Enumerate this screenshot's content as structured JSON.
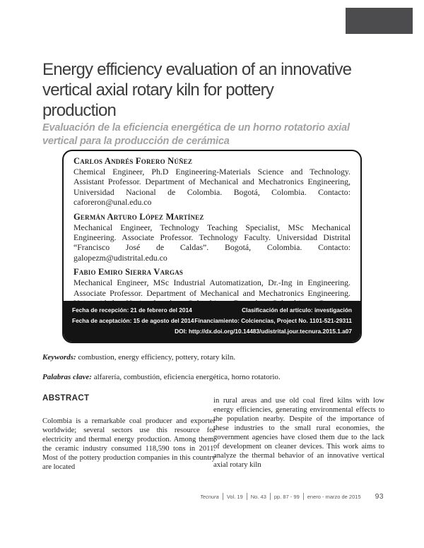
{
  "colors": {
    "page_background": "#ffffff",
    "corner_mark": "#4c4c4f",
    "title_text": "#3c3c3e",
    "subtitle_text": "#a2a2a4",
    "meta_band_background": "#141414",
    "meta_band_text": "#ffffff",
    "footer_text": "#58585a"
  },
  "header": {
    "title_lines": [
      "Energy efficiency evaluation of an innovative",
      "vertical axial rotary kiln for pottery",
      "production"
    ],
    "subtitle_lines": [
      "Evaluación de la eficiencia energética de un horno rotatorio axial",
      "vertical para la producción de cerámica"
    ]
  },
  "author_box": {
    "authors": [
      {
        "name": "Carlos Andrés Forero Núñez",
        "bio": "Chemical Engineer, Ph.D Engineering-Materials Science and Technology. Assistant Professor. Department of Mechanical and Mechatronics Engineering, Universidad Nacional de Colombia. Bogotá, Colombia. Contacto: caforeron@unal.edu.co"
      },
      {
        "name": "Germán Arturo López Martínez",
        "bio": "Mechanical Engineer, Technology Teaching Specialist, MSc Mechanical Engineering. Associate Professor. Technology Faculty. Universidad Distrital “Francisco José de Caldas”. Bogotá, Colombia. Contacto: galopezm@udistrital.edu.co"
      },
      {
        "name": "Fabio Emiro Sierra Vargas",
        "bio": "Mechanical Engineer, MSc Industrial Automatization, Dr.-Ing in Engineering. Associate Professor. Department of Mechanical and Mechatronics Engineering. Universidad Nacional de Colombia. Bogotá, Colombia. Contacto: fesierrav@unal.edu.co"
      }
    ],
    "meta": {
      "row1_left": "Fecha de recepción: 21 de febrero del 2014",
      "row1_right": "Clasificación del artículo: investigación",
      "row2_left": "Fecha de aceptación: 15 de agosto del 2014",
      "row2_right": "Financiamiento: Colciencias, Project No. 1101-521-29311",
      "row3_right": "DOI: http://dx.doi.org/10.14483/udistrital.jour.tecnura.2015.1.a07"
    }
  },
  "keywords": {
    "label": "Keywords:",
    "text": " combustion, energy efficiency, pottery, rotary kiln."
  },
  "palabras": {
    "label": "Palabras clave:",
    "text": " alfarería, combustión, eficiencia energética, horno rotatorio."
  },
  "abstract": {
    "heading": "ABSTRACT",
    "col_left": "Colombia is a remarkable coal producer and exporter worldwide; several sectors use this resource for electricity and thermal energy production. Among them, the ceramic industry consumed 118,590 tons in 2011. Most of the pottery production companies in this country are located",
    "col_right": "in rural areas and use old coal fired kilns with low energy efficiencies, generating environmental effects to the population nearby. Despite of the importance of these industries to the small rural economies, the government agencies have closed them due to the lack of development on cleaner devices. This work aims to analyze the thermal behavior of an innovative vertical axial rotary kiln"
  },
  "footer": {
    "journal": "Tecnura",
    "volume": "Vol. 19",
    "number": "No. 43",
    "pages": "pp. 87 - 99",
    "date": "enero - marzo de 2015",
    "page_number": "93"
  }
}
